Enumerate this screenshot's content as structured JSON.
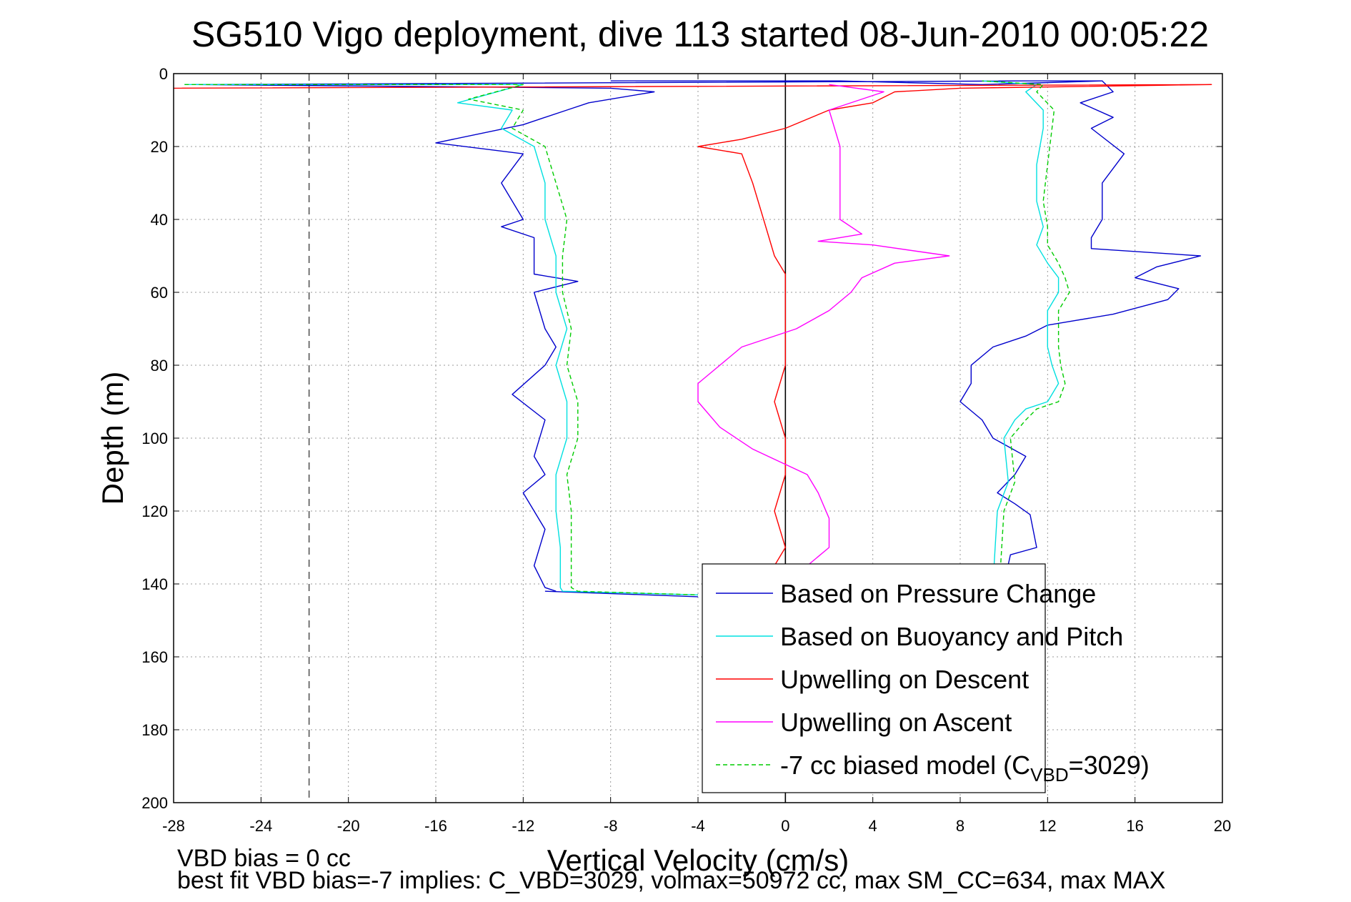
{
  "chart_data": {
    "type": "line",
    "title": "SG510 Vigo deployment, dive 113 started 08-Jun-2010 00:05:22",
    "xlabel": "Vertical Velocity (cm/s)",
    "ylabel": "Depth (m)",
    "xlim": [
      -28,
      20
    ],
    "ylim": [
      0,
      200
    ],
    "y_reversed": true,
    "grid": true,
    "xticks": [
      -28,
      -24,
      -20,
      -16,
      -12,
      -8,
      -4,
      0,
      4,
      8,
      12,
      16,
      20
    ],
    "yticks": [
      0,
      20,
      40,
      60,
      80,
      100,
      120,
      140,
      160,
      180,
      200
    ],
    "legend_placement": "bottom-right",
    "reference_lines": [
      {
        "x": -21.8,
        "style": "dashed",
        "color": "#555555"
      },
      {
        "x": 0,
        "style": "solid",
        "color": "#000000"
      }
    ],
    "series": [
      {
        "name": "Based on Pressure Change",
        "color": "#0000cc",
        "dash": "",
        "points": [
          [
            -8,
            2
          ],
          [
            2.5,
            2
          ],
          [
            9,
            3
          ],
          [
            14.5,
            2
          ],
          [
            11,
            2
          ],
          [
            -27,
            3
          ],
          [
            -8,
            4
          ],
          [
            -6,
            5
          ],
          [
            -9,
            8
          ],
          [
            -10,
            10
          ],
          [
            -12,
            14
          ],
          [
            -16,
            19
          ],
          [
            -12,
            22
          ],
          [
            -13,
            30
          ],
          [
            -12,
            40
          ],
          [
            -13,
            42
          ],
          [
            -11.5,
            45
          ],
          [
            -11.5,
            55
          ],
          [
            -9.5,
            57
          ],
          [
            -11.5,
            60
          ],
          [
            -11,
            70
          ],
          [
            -10.5,
            75
          ],
          [
            -11,
            80
          ],
          [
            -12.5,
            88
          ],
          [
            -11,
            95
          ],
          [
            -11.5,
            105
          ],
          [
            -11,
            110
          ],
          [
            -12,
            115
          ],
          [
            -11,
            125
          ],
          [
            -11.5,
            135
          ],
          [
            -11,
            141
          ],
          [
            -10.5,
            142
          ]
        ]
      },
      {
        "name": "",
        "color": "#0000cc",
        "dash": "",
        "points": [
          [
            -11,
            142
          ],
          [
            -4,
            143.5
          ]
        ]
      },
      {
        "name": "",
        "color": "#0000cc",
        "dash": "",
        "points": [
          [
            10,
            140
          ],
          [
            10.3,
            132
          ],
          [
            11.5,
            130
          ],
          [
            11.2,
            121
          ],
          [
            10.5,
            118
          ],
          [
            9.7,
            115
          ],
          [
            10.5,
            110
          ],
          [
            11,
            105
          ],
          [
            9.5,
            100
          ],
          [
            9,
            95
          ],
          [
            8,
            90
          ],
          [
            8.5,
            85
          ],
          [
            8.5,
            80
          ],
          [
            9.5,
            75
          ],
          [
            11,
            72
          ],
          [
            12,
            69
          ],
          [
            13,
            68
          ],
          [
            15,
            66
          ],
          [
            17.5,
            62
          ],
          [
            18,
            59
          ],
          [
            16,
            56
          ],
          [
            17,
            53
          ],
          [
            19,
            50
          ],
          [
            14,
            48
          ],
          [
            14,
            45
          ],
          [
            14.5,
            40
          ],
          [
            14.5,
            30
          ],
          [
            15.5,
            22
          ],
          [
            14,
            15
          ],
          [
            15,
            12
          ],
          [
            13.5,
            8
          ],
          [
            15,
            5
          ],
          [
            14.5,
            2
          ]
        ]
      },
      {
        "name": "Based on Buoyancy and Pitch",
        "color": "#00e0e0",
        "dash": "",
        "points": [
          [
            -27.5,
            3
          ],
          [
            -12,
            3
          ],
          [
            -15,
            8
          ],
          [
            -12.5,
            10
          ],
          [
            -13,
            15
          ],
          [
            -11.5,
            20
          ],
          [
            -11,
            30
          ],
          [
            -11,
            40
          ],
          [
            -10.5,
            50
          ],
          [
            -10.5,
            60
          ],
          [
            -10,
            70
          ],
          [
            -10.5,
            80
          ],
          [
            -10,
            90
          ],
          [
            -10,
            100
          ],
          [
            -10.5,
            110
          ],
          [
            -10.5,
            120
          ],
          [
            -10.3,
            130
          ],
          [
            -10.3,
            141
          ],
          [
            -10.2,
            142
          ],
          [
            -4,
            143
          ]
        ]
      },
      {
        "name": "",
        "color": "#00e0e0",
        "dash": "",
        "points": [
          [
            9.5,
            140
          ],
          [
            9.6,
            130
          ],
          [
            9.7,
            120
          ],
          [
            10.2,
            112
          ],
          [
            10,
            100
          ],
          [
            10.5,
            95
          ],
          [
            11,
            92
          ],
          [
            12,
            90
          ],
          [
            12.5,
            85
          ],
          [
            12.2,
            80
          ],
          [
            12,
            75
          ],
          [
            12,
            70
          ],
          [
            12,
            65
          ],
          [
            12.5,
            60
          ],
          [
            12.5,
            56
          ],
          [
            12,
            52
          ],
          [
            11.5,
            47
          ],
          [
            11.8,
            42
          ],
          [
            11.5,
            35
          ],
          [
            11.5,
            25
          ],
          [
            11.8,
            15
          ],
          [
            11.8,
            10
          ],
          [
            11,
            5
          ],
          [
            11.5,
            3
          ],
          [
            9,
            2
          ]
        ]
      },
      {
        "name": "Upwelling on Descent",
        "color": "#ff0000",
        "dash": "",
        "points": [
          [
            -28,
            4
          ],
          [
            19.5,
            3
          ],
          [
            8,
            4
          ],
          [
            5,
            5
          ],
          [
            4,
            8
          ],
          [
            2,
            10
          ],
          [
            0,
            15
          ],
          [
            -2,
            18
          ],
          [
            -4,
            20
          ],
          [
            -2,
            22
          ],
          [
            -1.5,
            30
          ],
          [
            -1,
            40
          ],
          [
            -0.5,
            50
          ],
          [
            0,
            55
          ],
          [
            0,
            60
          ],
          [
            0,
            70
          ],
          [
            0,
            80
          ],
          [
            -0.5,
            90
          ],
          [
            0,
            100
          ],
          [
            0,
            110
          ],
          [
            -0.5,
            120
          ],
          [
            0,
            130
          ],
          [
            -0.5,
            135
          ],
          [
            -1,
            140
          ]
        ]
      },
      {
        "name": "Upwelling on Ascent",
        "color": "#ff00ff",
        "dash": "",
        "points": [
          [
            1,
            135
          ],
          [
            2,
            130
          ],
          [
            2,
            122
          ],
          [
            1.5,
            115
          ],
          [
            1,
            110
          ],
          [
            -1.5,
            103
          ],
          [
            -3,
            97
          ],
          [
            -4,
            90
          ],
          [
            -4,
            85
          ],
          [
            -3,
            80
          ],
          [
            -2,
            75
          ],
          [
            0.5,
            70
          ],
          [
            2,
            65
          ],
          [
            3,
            60
          ],
          [
            3.5,
            56
          ],
          [
            5,
            52
          ],
          [
            7.5,
            50
          ],
          [
            4,
            47
          ],
          [
            1.5,
            46
          ],
          [
            3.5,
            44
          ],
          [
            2.5,
            40
          ],
          [
            2.5,
            30
          ],
          [
            2.5,
            20
          ],
          [
            2,
            10
          ],
          [
            4.5,
            5
          ],
          [
            2,
            3
          ]
        ]
      },
      {
        "name": "-7 cc biased model (Cᵥʙᴅ=3029)",
        "color": "#00cc00",
        "dash": "6,4",
        "points": [
          [
            -27.5,
            3
          ],
          [
            -12,
            3
          ],
          [
            -14.5,
            7
          ],
          [
            -12,
            10
          ],
          [
            -12.5,
            15
          ],
          [
            -11,
            20
          ],
          [
            -10.5,
            30
          ],
          [
            -10,
            40
          ],
          [
            -10.2,
            50
          ],
          [
            -10.2,
            60
          ],
          [
            -9.8,
            70
          ],
          [
            -10,
            80
          ],
          [
            -9.5,
            90
          ],
          [
            -9.5,
            100
          ],
          [
            -10,
            110
          ],
          [
            -9.8,
            120
          ],
          [
            -9.8,
            130
          ],
          [
            -9.8,
            141
          ],
          [
            -9.5,
            142
          ],
          [
            -4,
            143
          ]
        ]
      },
      {
        "name": "",
        "color": "#00cc00",
        "dash": "6,4",
        "points": [
          [
            9.8,
            140
          ],
          [
            9.9,
            130
          ],
          [
            10,
            120
          ],
          [
            10.5,
            112
          ],
          [
            10.3,
            100
          ],
          [
            11,
            95
          ],
          [
            11.5,
            92
          ],
          [
            12.5,
            90
          ],
          [
            12.8,
            85
          ],
          [
            12.6,
            80
          ],
          [
            12.5,
            75
          ],
          [
            12.5,
            70
          ],
          [
            12.5,
            65
          ],
          [
            13,
            60
          ],
          [
            12.8,
            56
          ],
          [
            12.5,
            52
          ],
          [
            12,
            47
          ],
          [
            12,
            42
          ],
          [
            11.8,
            35
          ],
          [
            12,
            25
          ],
          [
            12.2,
            15
          ],
          [
            12.3,
            10
          ],
          [
            11.5,
            5
          ],
          [
            11.8,
            3
          ],
          [
            9,
            2
          ]
        ]
      }
    ],
    "legend": [
      {
        "label": "Based on Pressure Change",
        "color": "#0000cc",
        "dash": ""
      },
      {
        "label": "Based on Buoyancy and Pitch",
        "color": "#00e0e0",
        "dash": ""
      },
      {
        "label": "Upwelling on Descent",
        "color": "#ff0000",
        "dash": ""
      },
      {
        "label": "Upwelling on Ascent",
        "color": "#ff00ff",
        "dash": ""
      },
      {
        "label": "-7 cc biased model (C",
        "sub": "VBD",
        "after": "=3029)",
        "color": "#00cc00",
        "dash": "6,4"
      }
    ],
    "annotations": [
      "VBD bias = 0 cc",
      "best fit VBD bias=-7 implies: C_VBD=3029, volmax=50972 cc, max SM_CC=634, max MAX"
    ]
  }
}
